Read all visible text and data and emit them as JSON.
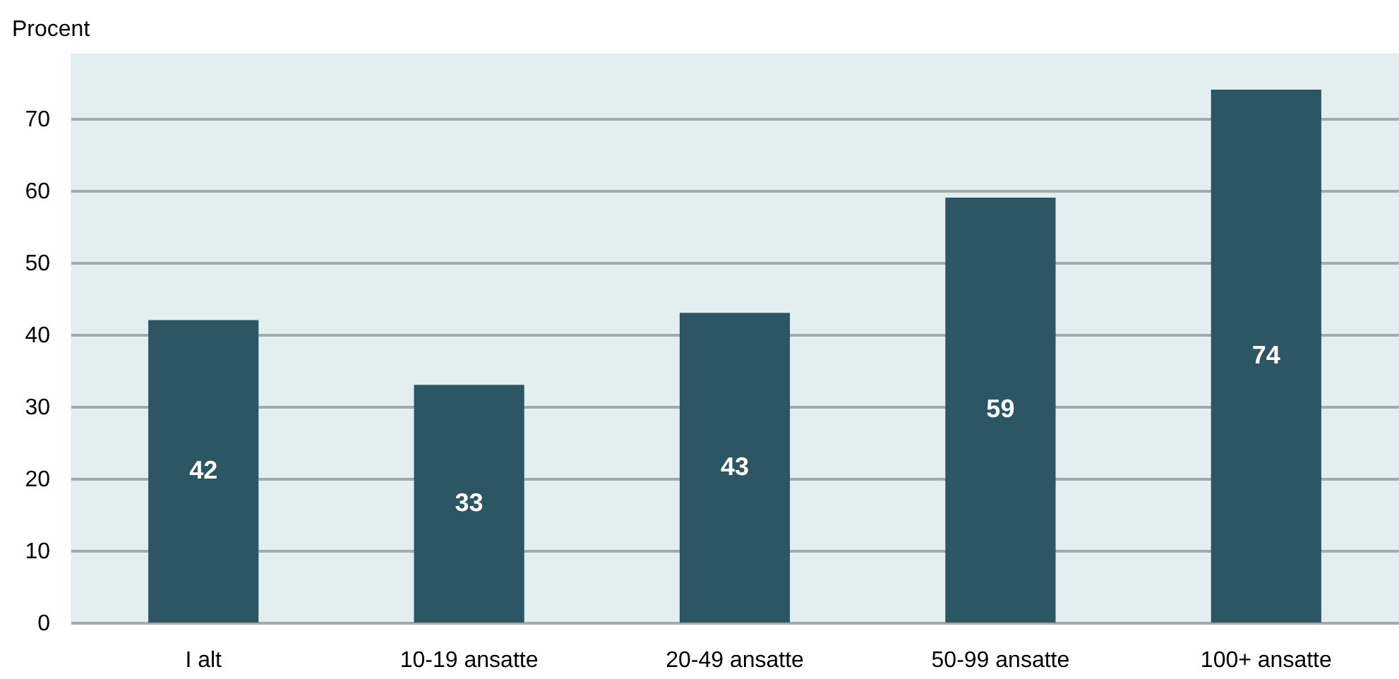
{
  "chart_data": {
    "type": "bar",
    "ylabel": "Procent",
    "categories": [
      "I alt",
      "10-19 ansatte",
      "20-49 ansatte",
      "50-99 ansatte",
      "100+  ansatte"
    ],
    "values": [
      42,
      33,
      43,
      59,
      74
    ],
    "color": "#2d5664",
    "ylim": [
      0,
      79
    ],
    "yticks": [
      0,
      10,
      20,
      30,
      40,
      50,
      60,
      70
    ],
    "grid": "y",
    "data_labels": true
  }
}
